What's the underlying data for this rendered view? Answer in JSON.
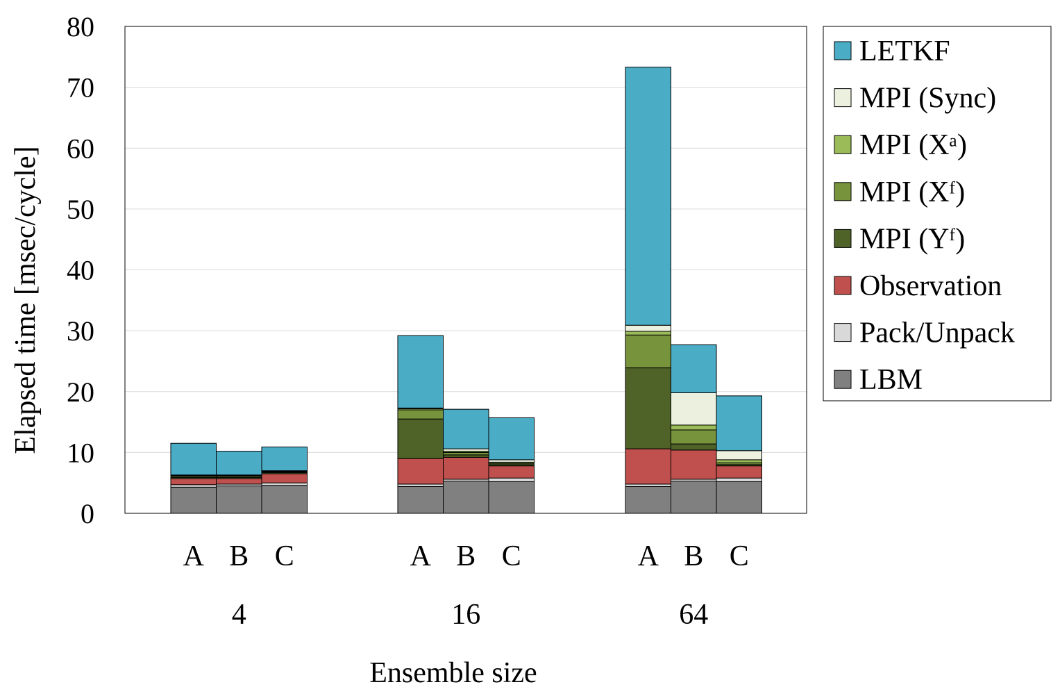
{
  "chart_data": {
    "type": "bar",
    "stacked": true,
    "title": "",
    "xlabel": "Ensemble size",
    "ylabel": "Elapsed time [msec/cycle]",
    "ylim": [
      0,
      80
    ],
    "yticks": [
      0,
      10,
      20,
      30,
      40,
      50,
      60,
      70,
      80
    ],
    "grid": "horizontal",
    "legend_position": "right",
    "groups": [
      "4",
      "16",
      "64"
    ],
    "subcategories": [
      "A",
      "B",
      "C"
    ],
    "series": [
      {
        "name": "LBM",
        "color": "#808080",
        "values": [
          [
            4.3,
            4.5,
            4.6
          ],
          [
            4.4,
            5.3,
            5.2
          ],
          [
            4.4,
            5.3,
            5.2
          ]
        ]
      },
      {
        "name": "Pack/Unpack",
        "color": "#d9d9d9",
        "values": [
          [
            0.4,
            0.3,
            0.4
          ],
          [
            0.4,
            0.3,
            0.6
          ],
          [
            0.4,
            0.3,
            0.6
          ]
        ]
      },
      {
        "name": "Observation",
        "color": "#c0504d",
        "values": [
          [
            1.0,
            0.9,
            1.5
          ],
          [
            4.2,
            3.6,
            2.0
          ],
          [
            5.8,
            4.8,
            2.0
          ]
        ]
      },
      {
        "name": "MPI (Yᶠ)",
        "color": "#4f6228",
        "values": [
          [
            0.2,
            0.2,
            0.2
          ],
          [
            6.5,
            0.4,
            0.2
          ],
          [
            13.3,
            1.0,
            0.2
          ]
        ]
      },
      {
        "name": "MPI (Xᶠ)",
        "color": "#77933c",
        "values": [
          [
            0.2,
            0.2,
            0.1
          ],
          [
            1.5,
            0.4,
            0.2
          ],
          [
            5.4,
            2.3,
            0.3
          ]
        ]
      },
      {
        "name": "MPI (Xᵃ)",
        "color": "#9bbb59",
        "values": [
          [
            0.1,
            0.1,
            0.1
          ],
          [
            0.2,
            0.2,
            0.2
          ],
          [
            0.6,
            0.8,
            0.5
          ]
        ]
      },
      {
        "name": "MPI (Sync)",
        "color": "#ebf1de",
        "values": [
          [
            0.1,
            0.1,
            0.1
          ],
          [
            0.1,
            0.4,
            0.4
          ],
          [
            1.0,
            5.3,
            1.5
          ]
        ]
      },
      {
        "name": "LETKF",
        "color": "#4bacc6",
        "values": [
          [
            5.2,
            3.9,
            3.9
          ],
          [
            11.9,
            6.5,
            6.9
          ],
          [
            42.4,
            7.9,
            9.0
          ]
        ]
      }
    ],
    "legend_order": [
      "LETKF",
      "MPI (Sync)",
      "MPI (Xᵃ)",
      "MPI (Xᶠ)",
      "MPI (Yᶠ)",
      "Observation",
      "Pack/Unpack",
      "LBM"
    ]
  }
}
